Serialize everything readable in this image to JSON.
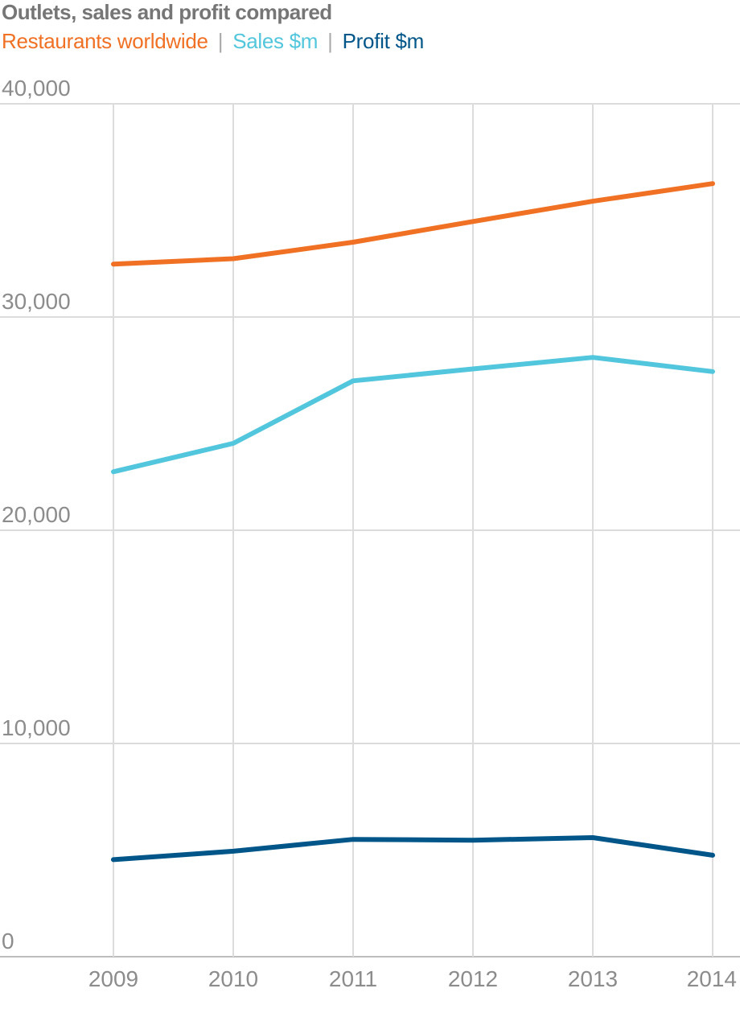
{
  "chart_data": {
    "type": "line",
    "title": "Outlets, sales and profit compared",
    "x": [
      "2009",
      "2010",
      "2011",
      "2012",
      "2013",
      "2014"
    ],
    "y_ticks": [
      "0",
      "10,000",
      "20,000",
      "30,000",
      "40,000"
    ],
    "ylim": [
      0,
      40000
    ],
    "grid": true,
    "legend_placement": "top-left",
    "series": [
      {
        "name": "Restaurants worldwide",
        "color": "#f07124",
        "values": [
          32478,
          32737,
          33510,
          34480,
          35429,
          36258
        ]
      },
      {
        "name": "Sales $m",
        "color": "#52c6dc",
        "values": [
          22745,
          24075,
          27006,
          27567,
          28106,
          27441
        ]
      },
      {
        "name": "Profit $m",
        "color": "#005689",
        "values": [
          4551,
          4946,
          5503,
          5465,
          5586,
          4758
        ]
      }
    ]
  },
  "legend_separator": "|"
}
